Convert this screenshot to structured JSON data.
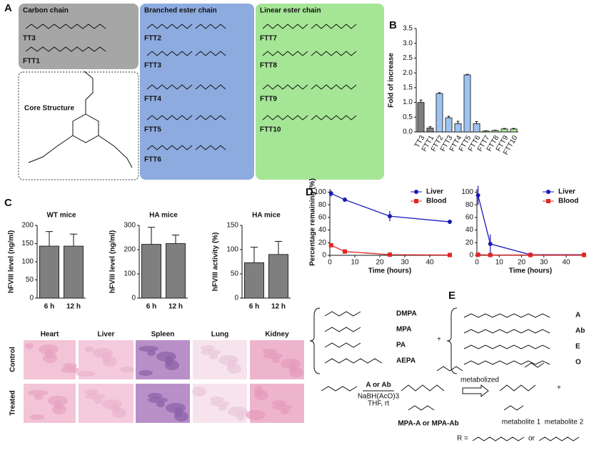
{
  "panel_labels": [
    "A",
    "B",
    "C",
    "D",
    "E"
  ],
  "panel_a": {
    "groups": [
      {
        "title": "Carbon chain",
        "compounds": [
          "TT3",
          "FTT1"
        ]
      },
      {
        "title": "Branched ester chain",
        "compounds": [
          "FTT2",
          "FTT3",
          "FTT4",
          "FTT5",
          "FTT6"
        ]
      },
      {
        "title": "Linear ester chain",
        "compounds": [
          "FTT7",
          "FTT8",
          "FTT9",
          "FTT10"
        ]
      }
    ],
    "core": "Core Structure"
  },
  "chart_data": [
    {
      "type": "bar",
      "ylabel": "Fold of increase",
      "categories": [
        "TT3",
        "FTT1",
        "FTT2",
        "FTT3",
        "FTT4",
        "FTT5",
        "FTT6",
        "FTT7",
        "FTT8",
        "FTT9",
        "FTT10"
      ],
      "values": [
        1.0,
        0.13,
        1.3,
        0.48,
        0.28,
        1.93,
        0.28,
        0.03,
        0.05,
        0.1,
        0.1
      ],
      "errors": [
        0.08,
        0.05,
        0.03,
        0.05,
        0.08,
        0.02,
        0.07,
        0.01,
        0.01,
        0.02,
        0.02
      ],
      "colors": [
        "#7f7f7f",
        "#7f7f7f",
        "#9dc3f0",
        "#9dc3f0",
        "#9dc3f0",
        "#9dc3f0",
        "#9dc3f0",
        "#a9e59a",
        "#a9e59a",
        "#a9e59a",
        "#a9e59a"
      ],
      "ylim": [
        0,
        3.5
      ],
      "yticks": [
        {
          "value": 0,
          "label": "0.0"
        },
        {
          "value": 0.5,
          "label": "0.5"
        },
        {
          "value": 1,
          "label": "1.0"
        },
        {
          "value": 1.5,
          "label": "1.5"
        },
        {
          "value": 2,
          "label": "2.0"
        },
        {
          "value": 2.5,
          "label": "2.5"
        },
        {
          "value": 3,
          "label": "3.0"
        },
        {
          "value": 3.5,
          "label": "3.5"
        }
      ]
    },
    {
      "type": "bar",
      "title": "WT mice",
      "ylabel": "hFVIII level (ng/ml)",
      "categories": [
        "6 h",
        "12 h"
      ],
      "values": [
        143,
        143
      ],
      "errors": [
        40,
        33
      ],
      "color": "#7f7f7f",
      "ylim": [
        0,
        200
      ],
      "yticks": [
        0,
        50,
        100,
        150,
        200
      ]
    },
    {
      "type": "bar",
      "title": "HA mice",
      "ylabel": "hFVIII level (ng/ml)",
      "categories": [
        "6 h",
        "12 h"
      ],
      "values": [
        222,
        225
      ],
      "errors": [
        70,
        35
      ],
      "color": "#7f7f7f",
      "ylim": [
        0,
        300
      ],
      "yticks": [
        0,
        100,
        200,
        300
      ]
    },
    {
      "type": "bar",
      "title": "HA mice",
      "ylabel": "hFVIII activity (%)",
      "categories": [
        "6 h",
        "12 h"
      ],
      "values": [
        73,
        90
      ],
      "errors": [
        32,
        27
      ],
      "color": "#7f7f7f",
      "ylim": [
        0,
        150
      ],
      "yticks": [
        0,
        50,
        100,
        150
      ]
    },
    {
      "type": "line",
      "ylabel": "Percentage remaining (%)",
      "xlabel": "Time (hours)",
      "x": [
        0.5,
        6,
        24,
        48
      ],
      "series": [
        {
          "name": "Liver",
          "color": "#1a1ab8",
          "marker": "circle",
          "values": [
            98,
            88,
            62,
            53
          ],
          "errors": [
            5,
            0,
            8,
            0
          ]
        },
        {
          "name": "Blood",
          "color": "#e02424",
          "marker": "square",
          "values": [
            16,
            6,
            1,
            0.5
          ],
          "errors": [
            0,
            0,
            0,
            0
          ]
        }
      ],
      "xlim": [
        0,
        48
      ],
      "xticks": [
        0,
        10,
        20,
        30,
        40
      ],
      "ylim": [
        0,
        105
      ],
      "yticks": [
        0,
        20,
        40,
        60,
        80,
        100
      ]
    },
    {
      "type": "line",
      "xlabel": "Time (hours)",
      "x": [
        0.5,
        6,
        24,
        48
      ],
      "series": [
        {
          "name": "Liver",
          "color": "#1a1ab8",
          "marker": "circle",
          "values": [
            95,
            18,
            1,
            1
          ],
          "errors": [
            15,
            15,
            0,
            0
          ]
        },
        {
          "name": "Blood",
          "color": "#e02424",
          "marker": "square",
          "values": [
            1,
            0.5,
            0.5,
            0.5
          ],
          "errors": [
            0,
            0,
            0,
            0
          ]
        }
      ],
      "xlim": [
        0,
        48
      ],
      "xticks": [
        0,
        10,
        20,
        30,
        40
      ],
      "ylim": [
        0,
        105
      ],
      "yticks": [
        0,
        20,
        40,
        60,
        80,
        100
      ]
    }
  ],
  "histology": {
    "columns": [
      "Heart",
      "Liver",
      "Spleen",
      "Lung",
      "Kidney"
    ],
    "rows": [
      "Control",
      "Treated"
    ]
  },
  "panel_e": {
    "amines": [
      "DMPA",
      "MPA",
      "PA",
      "AEPA"
    ],
    "tails": [
      "A",
      "Ab",
      "E",
      "O"
    ],
    "plus": "+",
    "reagent": "A or Ab",
    "conditions": [
      "NaBH(AcO)3",
      "THF, rt"
    ],
    "product": "MPA-A or MPA-Ab",
    "arrow": "metabolized",
    "metabolites": [
      "metabolite 1",
      "metabolite 2"
    ],
    "r_eq": "R =",
    "or": "or"
  }
}
